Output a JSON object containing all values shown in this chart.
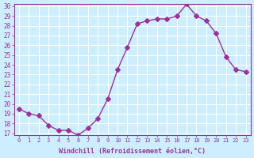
{
  "x": [
    0,
    1,
    2,
    3,
    4,
    5,
    6,
    7,
    8,
    9,
    10,
    11,
    12,
    13,
    14,
    15,
    16,
    17,
    18,
    19,
    20,
    21,
    22,
    23
  ],
  "y": [
    19.5,
    19.0,
    18.8,
    17.8,
    17.3,
    17.3,
    16.8,
    17.5,
    18.5,
    20.5,
    23.5,
    25.8,
    28.2,
    28.5,
    28.7,
    28.7,
    29.0,
    30.2,
    29.0,
    28.5,
    27.2,
    24.8,
    23.5,
    23.3
  ],
  "line_color": "#993399",
  "marker": "D",
  "marker_size": 3,
  "bg_color": "#cceeff",
  "grid_color": "#ffffff",
  "xlabel": "Windchill (Refroidissement éolien,°C)",
  "xlabel_color": "#993399",
  "tick_color": "#993399",
  "ylim": [
    17,
    30
  ],
  "yticks": [
    17,
    18,
    19,
    20,
    21,
    22,
    23,
    24,
    25,
    26,
    27,
    28,
    29,
    30
  ],
  "xticks": [
    0,
    1,
    2,
    3,
    4,
    5,
    6,
    7,
    8,
    9,
    10,
    11,
    12,
    13,
    14,
    15,
    16,
    17,
    18,
    19,
    20,
    21,
    22,
    23
  ]
}
